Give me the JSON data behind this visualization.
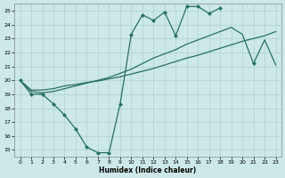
{
  "xlabel": "Humidex (Indice chaleur)",
  "xlim": [
    -0.5,
    23.5
  ],
  "ylim": [
    14.5,
    25.5
  ],
  "xticks": [
    0,
    1,
    2,
    3,
    4,
    5,
    6,
    7,
    8,
    9,
    10,
    11,
    12,
    13,
    14,
    15,
    16,
    17,
    18,
    19,
    20,
    21,
    22,
    23
  ],
  "yticks": [
    15,
    16,
    17,
    18,
    19,
    20,
    21,
    22,
    23,
    24,
    25
  ],
  "background_color": "#cce8e8",
  "grid_color": "#aacccc",
  "line_color": "#2a7060",
  "line1_y": [
    20.0,
    19.0,
    19.0,
    18.3,
    17.5,
    16.5,
    15.2,
    14.8,
    14.8,
    18.3,
    23.3,
    24.7,
    24.3,
    24.9,
    23.2,
    25.3,
    25.3,
    24.8,
    25.2,
    null,
    null,
    21.2,
    null,
    null
  ],
  "line2_y": [
    20.0,
    19.3,
    19.3,
    19.4,
    19.6,
    19.7,
    19.85,
    19.95,
    20.1,
    20.25,
    20.45,
    20.65,
    20.85,
    21.1,
    21.35,
    21.6,
    21.8,
    22.05,
    22.3,
    22.55,
    22.8,
    23.0,
    23.2,
    23.5
  ],
  "line3_y": [
    20.0,
    19.2,
    19.1,
    19.2,
    19.4,
    19.6,
    19.8,
    20.0,
    20.2,
    20.5,
    20.8,
    21.2,
    21.6,
    21.9,
    22.2,
    22.6,
    22.9,
    23.2,
    23.5,
    23.8,
    23.3,
    21.2,
    22.9,
    21.1
  ],
  "marker_style": "D",
  "marker_size": 2.0,
  "line_width": 0.9
}
